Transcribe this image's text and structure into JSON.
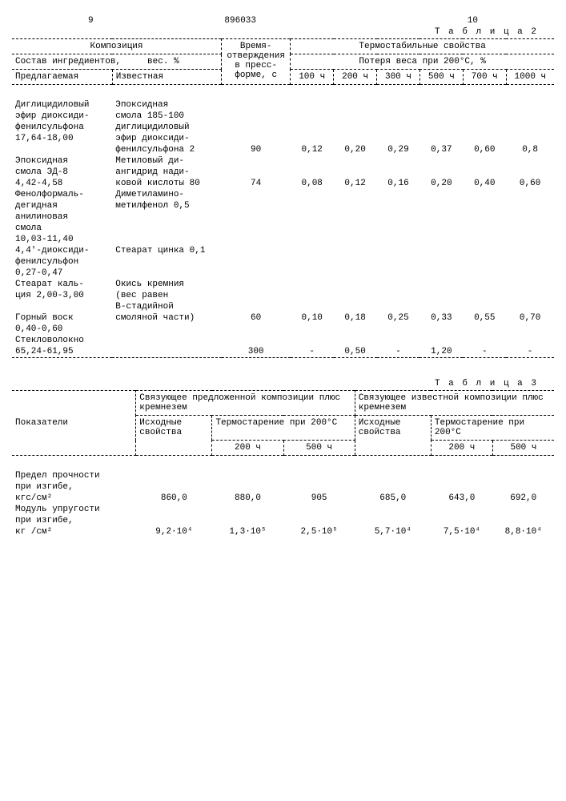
{
  "header": {
    "left_page": "9",
    "doc_number": "896033",
    "right_page": "10"
  },
  "table2": {
    "label": "Т а б л и ц а  2",
    "composition": "Композиция",
    "cure_time": "Время-отверждения в пресс-форме, с",
    "thermo": "Термостабильные свойства",
    "ingredients": "Состав ингредиентов,",
    "weight_pct": "вес. %",
    "weight_loss": "Потеря веса при 200°С, %",
    "proposed": "Предлагаемая",
    "known": "Известная",
    "h100": "100 ч",
    "h200": "200 ч",
    "h300": "300 ч",
    "h500": "500 ч",
    "h700": "700 ч",
    "h1000": "1000 ч",
    "rows": [
      {
        "c1a": "Диглицидиловый",
        "c2a": "Эпоксидная"
      },
      {
        "c1a": "эфир диоксиди-",
        "c2a": "смола 185-100"
      },
      {
        "c1a": "фенилсульфона",
        "c2a": "диглицидиловый"
      },
      {
        "c1a": "17,64-18,00",
        "c2a": "эфир диоксиди-"
      },
      {
        "c1a": "",
        "c2a": "фенилсульфона 2",
        "t": "90",
        "v": [
          "0,12",
          "0,20",
          "0,29",
          "0,37",
          "0,60",
          "0,8"
        ]
      },
      {
        "c1a": "Эпоксидная",
        "c2a": "Метиловый ди-"
      },
      {
        "c1a": "смола ЭД-8",
        "c2a": "ангидрид нади-"
      },
      {
        "c1a": "4,42-4,58",
        "c2a": "ковой кислоты 80",
        "t": "74",
        "v": [
          "0,08",
          "0,12",
          "0,16",
          "0,20",
          "0,40",
          "0,60"
        ]
      },
      {
        "c1a": "Фенолформаль-",
        "c2a": "Диметиламино-"
      },
      {
        "c1a": "дегидная",
        "c2a": "метилфенол 0,5"
      },
      {
        "c1a": "анилиновая",
        "c2a": ""
      },
      {
        "c1a": "смола",
        "c2a": ""
      },
      {
        "c1a": "10,03-11,40",
        "c2a": ""
      },
      {
        "c1a": "4,4'-диоксиди-",
        "c2a": "Стеарат цинка 0,1"
      },
      {
        "c1a": "фенилсульфон",
        "c2a": ""
      },
      {
        "c1a": "0,27-0,47",
        "c2a": ""
      },
      {
        "c1a": "Стеарат каль-",
        "c2a": "Окись кремния"
      },
      {
        "c1a": "ция 2,00-3,00",
        "c2a": "(вес равен"
      },
      {
        "c1a": "",
        "c2a": "В-стадийной"
      },
      {
        "c1a": "Горный воск",
        "c2a": "смоляной части)",
        "t": "60",
        "v": [
          "0,10",
          "0,18",
          "0,25",
          "0,33",
          "0,55",
          "0,70"
        ]
      },
      {
        "c1a": "0,40-0,60",
        "c2a": ""
      },
      {
        "c1a": "Стекловолокно",
        "c2a": ""
      },
      {
        "c1a": "65,24-61,95",
        "c2a": "",
        "t": "300",
        "v": [
          "-",
          "0,50",
          "-",
          "1,20",
          "-",
          "-"
        ]
      }
    ]
  },
  "table3": {
    "label": "Т а б л и ц а  3",
    "indicators": "Показатели",
    "binder_proposed": "Связующее предложенной композиции плюс кремнезем",
    "binder_known": "Связующее известной композиции плюс кремнезем",
    "initial_props": "Исходные свойства",
    "thermoaging": "Термостарение при 200°С",
    "h200": "200 ч",
    "h500": "500 ч",
    "rows": [
      {
        "label_a": "Предел прочности",
        "label_b": "при изгибе,",
        "label_c": "кгс/см²",
        "v": [
          "860,0",
          "880,0",
          "905",
          "685,0",
          "643,0",
          "692,0"
        ]
      },
      {
        "label_a": "Модуль упругости",
        "label_b": "при изгибе,",
        "label_c": "кг /см²",
        "v": [
          "9,2·10⁴",
          "1,3·10⁵",
          "2,5·10⁵",
          "5,7·10⁴",
          "7,5·10⁴",
          "8,8·10⁴"
        ]
      }
    ]
  }
}
